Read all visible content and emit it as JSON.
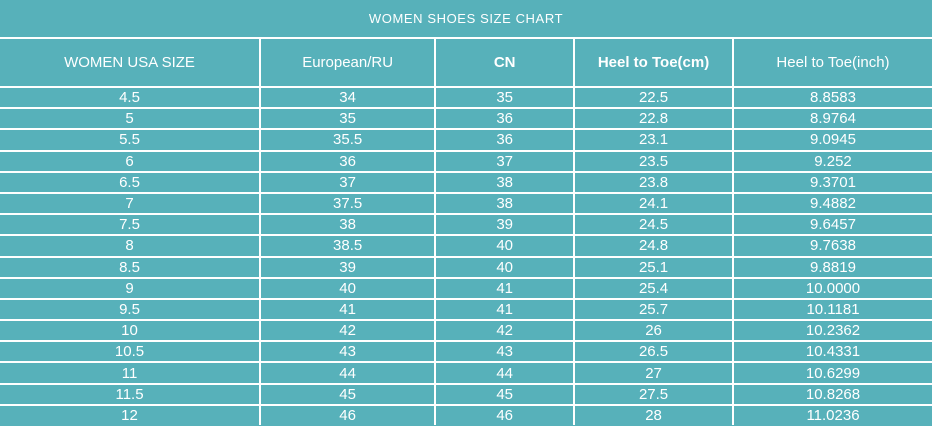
{
  "page": {
    "title": "WOMEN SHOES SIZE CHART"
  },
  "colors": {
    "background": "#57b1ba",
    "grid": "#ffffff",
    "text": "#ffffff"
  },
  "chart_data": {
    "type": "table",
    "title": "WOMEN SHOES SIZE CHART",
    "columns": [
      "WOMEN USA SIZE",
      "European/RU",
      "CN",
      "Heel to Toe(cm)",
      "Heel to Toe(inch)"
    ],
    "rows": [
      [
        "4.5",
        "34",
        "35",
        "22.5",
        "8.8583"
      ],
      [
        "5",
        "35",
        "36",
        "22.8",
        "8.9764"
      ],
      [
        "5.5",
        "35.5",
        "36",
        "23.1",
        "9.0945"
      ],
      [
        "6",
        "36",
        "37",
        "23.5",
        "9.252"
      ],
      [
        "6.5",
        "37",
        "38",
        "23.8",
        "9.3701"
      ],
      [
        "7",
        "37.5",
        "38",
        "24.1",
        "9.4882"
      ],
      [
        "7.5",
        "38",
        "39",
        "24.5",
        "9.6457"
      ],
      [
        "8",
        "38.5",
        "40",
        "24.8",
        "9.7638"
      ],
      [
        "8.5",
        "39",
        "40",
        "25.1",
        "9.8819"
      ],
      [
        "9",
        "40",
        "41",
        "25.4",
        "10.0000"
      ],
      [
        "9.5",
        "41",
        "41",
        "25.7",
        "10.1181"
      ],
      [
        "10",
        "42",
        "42",
        "26",
        "10.2362"
      ],
      [
        "10.5",
        "43",
        "43",
        "26.5",
        "10.4331"
      ],
      [
        "11",
        "44",
        "44",
        "27",
        "10.6299"
      ],
      [
        "11.5",
        "45",
        "45",
        "27.5",
        "10.8268"
      ],
      [
        "12",
        "46",
        "46",
        "28",
        "11.0236"
      ]
    ]
  }
}
